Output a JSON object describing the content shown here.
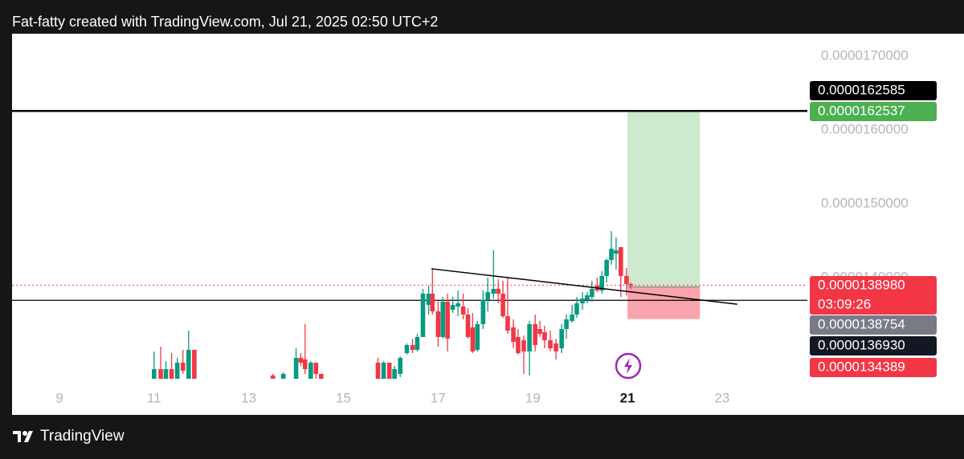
{
  "chart_data": {
    "type": "candlestick",
    "title": "Fat-fatty created with TradingView.com, Jul 21, 2025 02:50 UTC+2",
    "brand": "TradingView",
    "up_color": "#089981",
    "down_color": "#f23645",
    "xlim": [
      8.0,
      24.8
    ],
    "xticks": [
      9,
      11,
      13,
      15,
      17,
      19,
      21,
      23
    ],
    "ylim": [
      1.2489e-05,
      1.7304e-05
    ],
    "yticks": [
      {
        "value": 1.7e-05,
        "label": "0.0000170000"
      },
      {
        "value": 1.6e-05,
        "label": "0.0000160000"
      },
      {
        "value": 1.5e-05,
        "label": "0.0000150000"
      },
      {
        "value": 1.4e-05,
        "label": "0.0000140000"
      }
    ],
    "x": [
      11.0,
      11.14,
      11.25,
      11.37,
      11.49,
      11.61,
      11.73,
      11.85,
      13.51,
      13.73,
      14.0,
      14.1,
      14.19,
      14.31,
      14.42,
      14.53,
      15.73,
      15.85,
      15.97,
      16.08,
      16.2,
      16.34,
      16.46,
      16.56,
      16.68,
      16.8,
      16.88,
      17.0,
      17.1,
      17.2,
      17.31,
      17.42,
      17.53,
      17.63,
      17.73,
      17.83,
      17.95,
      18.05,
      18.17,
      18.27,
      18.37,
      18.47,
      18.59,
      18.69,
      18.81,
      18.93,
      19.05,
      19.15,
      19.25,
      19.37,
      19.49,
      19.61,
      19.71,
      19.83,
      19.93,
      20.05,
      20.15,
      20.25,
      20.36,
      20.46,
      20.56,
      20.66,
      20.76,
      20.86,
      20.98,
      21.07
    ],
    "open": [
      1.263e-05,
      1.2761e-05,
      1.263e-05,
      1.2761e-05,
      1.263e-05,
      1.2848e-05,
      1.263e-05,
      1.3022e-05,
      1.2674e-05,
      1.263e-05,
      1.263e-05,
      1.2913e-05,
      1.2891e-05,
      1.263e-05,
      1.2848e-05,
      1.2696e-05,
      1.2848e-05,
      1.263e-05,
      1.2848e-05,
      1.263e-05,
      1.2696e-05,
      1.2978e-05,
      1.3087e-05,
      1.3022e-05,
      1.3196e-05,
      1.363e-05,
      1.3783e-05,
      1.3543e-05,
      1.3196e-05,
      1.3674e-05,
      1.3565e-05,
      1.3609e-05,
      1.3609e-05,
      1.35e-05,
      1.3326e-05,
      1.3022e-05,
      1.337e-05,
      1.3696e-05,
      1.3783e-05,
      1.3848e-05,
      1.3783e-05,
      1.3478e-05,
      1.3326e-05,
      1.3196e-05,
      1.3152e-05,
      1.3e-05,
      1.337e-05,
      1.3304e-05,
      1.3261e-05,
      1.3152e-05,
      1.3109e-05,
      1.3043e-05,
      1.3304e-05,
      1.3413e-05,
      1.35e-05,
      1.3652e-05,
      1.3696e-05,
      1.3739e-05,
      1.3891e-05,
      1.3826e-05,
      1.4022e-05,
      1.4239e-05,
      1.4326e-05,
      1.4413e-05,
      1.4022e-05,
      1.3913e-05
    ],
    "high": [
      1.3e-05,
      1.3065e-05,
      1.287e-05,
      1.2978e-05,
      1.2913e-05,
      1.3022e-05,
      1.3283e-05,
      1.3022e-05,
      1.2696e-05,
      1.2717e-05,
      1.3043e-05,
      1.2978e-05,
      1.337e-05,
      1.287e-05,
      1.2848e-05,
      1.2696e-05,
      1.2913e-05,
      1.287e-05,
      1.2848e-05,
      1.2804e-05,
      1.2935e-05,
      1.3109e-05,
      1.3174e-05,
      1.3239e-05,
      1.3848e-05,
      1.3891e-05,
      1.413e-05,
      1.3674e-05,
      1.3739e-05,
      1.3783e-05,
      1.3739e-05,
      1.3826e-05,
      1.3783e-05,
      1.3587e-05,
      1.3522e-05,
      1.3413e-05,
      1.3826e-05,
      1.4e-05,
      1.437e-05,
      1.3978e-05,
      1.3957e-05,
      1.4e-05,
      1.3435e-05,
      1.3304e-05,
      1.3217e-05,
      1.3413e-05,
      1.35e-05,
      1.3413e-05,
      1.3348e-05,
      1.3283e-05,
      1.3174e-05,
      1.337e-05,
      1.35e-05,
      1.363e-05,
      1.3739e-05,
      1.3804e-05,
      1.3804e-05,
      1.3957e-05,
      1.4e-05,
      1.4087e-05,
      1.4261e-05,
      1.463e-05,
      1.4543e-05,
      1.4413e-05,
      1.413e-05,
      1.3935e-05
    ],
    "low": [
      1.263e-05,
      1.263e-05,
      1.263e-05,
      1.263e-05,
      1.263e-05,
      1.2696e-05,
      1.263e-05,
      1.263e-05,
      1.263e-05,
      1.263e-05,
      1.263e-05,
      1.2804e-05,
      1.2696e-05,
      1.263e-05,
      1.263e-05,
      1.263e-05,
      1.263e-05,
      1.263e-05,
      1.263e-05,
      1.263e-05,
      1.2652e-05,
      1.2957e-05,
      1.2978e-05,
      1.3e-05,
      1.3196e-05,
      1.35e-05,
      1.35e-05,
      1.3065e-05,
      1.3174e-05,
      1.3e-05,
      1.3522e-05,
      1.3478e-05,
      1.3435e-05,
      1.3174e-05,
      1.2978e-05,
      1.3e-05,
      1.3304e-05,
      1.3543e-05,
      1.3717e-05,
      1.3652e-05,
      1.3457e-05,
      1.3239e-05,
      1.3043e-05,
      1.2957e-05,
      1.2696e-05,
      1.2674e-05,
      1.3e-05,
      1.3196e-05,
      1.3043e-05,
      1.3e-05,
      1.2891e-05,
      1.2978e-05,
      1.3174e-05,
      1.3391e-05,
      1.3457e-05,
      1.3565e-05,
      1.3652e-05,
      1.3674e-05,
      1.3804e-05,
      1.3783e-05,
      1.3935e-05,
      1.4174e-05,
      1.4109e-05,
      1.3739e-05,
      1.3761e-05,
      1.3848e-05
    ],
    "close": [
      1.2761e-05,
      1.263e-05,
      1.2761e-05,
      1.263e-05,
      1.2848e-05,
      1.2739e-05,
      1.3022e-05,
      1.263e-05,
      1.263e-05,
      1.2696e-05,
      1.2913e-05,
      1.2848e-05,
      1.2761e-05,
      1.2848e-05,
      1.2696e-05,
      1.263e-05,
      1.263e-05,
      1.2848e-05,
      1.263e-05,
      1.2761e-05,
      1.2913e-05,
      1.3087e-05,
      1.3022e-05,
      1.3196e-05,
      1.3783e-05,
      1.3783e-05,
      1.3543e-05,
      1.3196e-05,
      1.3674e-05,
      1.3174e-05,
      1.363e-05,
      1.3652e-05,
      1.35e-05,
      1.3196e-05,
      1.3e-05,
      1.337e-05,
      1.3696e-05,
      1.3804e-05,
      1.3848e-05,
      1.3783e-05,
      1.3478e-05,
      1.3283e-05,
      1.313e-05,
      1.2978e-05,
      1.3e-05,
      1.337e-05,
      1.3087e-05,
      1.3239e-05,
      1.3152e-05,
      1.3043e-05,
      1.3e-05,
      1.3304e-05,
      1.3435e-05,
      1.35e-05,
      1.3652e-05,
      1.3717e-05,
      1.3761e-05,
      1.3848e-05,
      1.3826e-05,
      1.4022e-05,
      1.4239e-05,
      1.4391e-05,
      1.437e-05,
      1.4022e-05,
      1.3913e-05,
      1.3891e-05
    ],
    "price_labels": [
      {
        "value": 1.62585e-05,
        "label": "0.0000162585",
        "color": "#000000"
      },
      {
        "value": 1.62537e-05,
        "label": "0.0000162537",
        "color": "#4caf50"
      },
      {
        "value": 1.3898e-05,
        "label": "0.0000138980",
        "color": "#f23645"
      },
      {
        "value": 1.38754e-05,
        "label": "0.0000138754",
        "color": "#787b86"
      },
      {
        "value": 1.3693e-05,
        "label": "0.0000136930",
        "color": "#131722"
      },
      {
        "value": 1.34389e-05,
        "label": "0.0000134389",
        "color": "#f23645"
      }
    ],
    "countdown": "03:09:26",
    "position_x": [
      21.0,
      22.53
    ],
    "trendline": {
      "x": [
        16.86,
        23.32
      ],
      "y": [
        1.412e-05,
        1.364e-05
      ]
    }
  }
}
